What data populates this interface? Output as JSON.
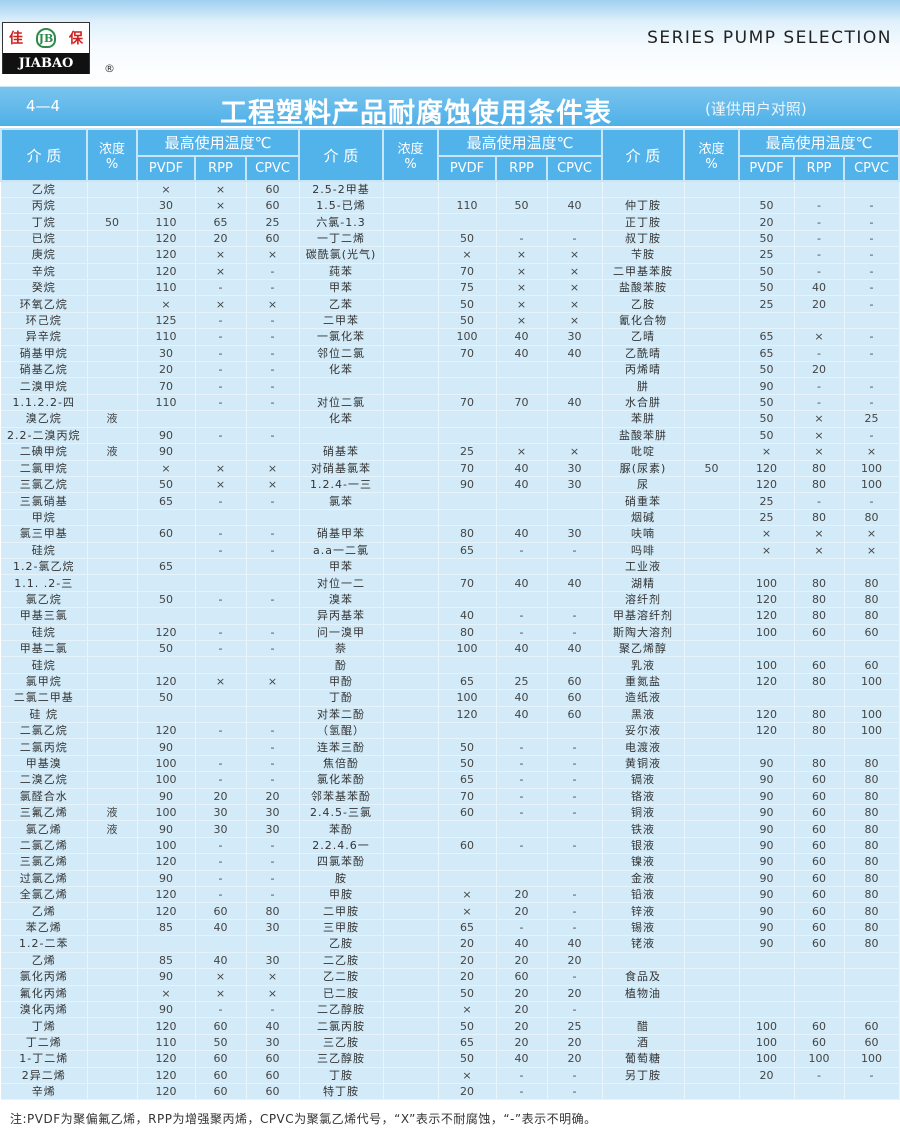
{
  "header": {
    "brand_cn_left": "佳",
    "brand_cn_right": "保",
    "brand_en": "JIABAO",
    "registered": "®",
    "series": "SERIES PUMP SELECTION"
  },
  "titlebar": {
    "section": "4—4",
    "title": "工程塑料产品耐腐蚀使用条件表",
    "subtitle": "(谨供用户对照)"
  },
  "columns": {
    "medium": "介 质",
    "concentration": "浓度",
    "percent": "%",
    "max_temp": "最高使用温度℃",
    "pvdf": "PVDF",
    "rpp": "RPP",
    "cpvc": "CPVC"
  },
  "groups": [
    {
      "rows": [
        [
          "乙烷",
          "",
          "×",
          "×",
          "60"
        ],
        [
          "丙烷",
          "",
          "30",
          "×",
          "60"
        ],
        [
          "丁烷",
          "50",
          "110",
          "65",
          "25"
        ],
        [
          "已烷",
          "",
          "120",
          "20",
          "60"
        ],
        [
          "庚烷",
          "",
          "120",
          "×",
          "×"
        ],
        [
          "辛烷",
          "",
          "120",
          "×",
          "-"
        ],
        [
          "癸烷",
          "",
          "110",
          "-",
          "-"
        ],
        [
          "环氧乙烷",
          "",
          "×",
          "×",
          "×"
        ],
        [
          "环己烷",
          "",
          "125",
          "-",
          "-"
        ],
        [
          "异辛烷",
          "",
          "110",
          "-",
          "-"
        ],
        [
          "硝基甲烷",
          "",
          "30",
          "-",
          "-"
        ],
        [
          "硝基乙烷",
          "",
          "20",
          "-",
          "-"
        ],
        [
          "二溴甲烷",
          "",
          "70",
          "-",
          "-"
        ],
        [
          "1.1.2.2-四",
          "",
          "110",
          "-",
          "-"
        ],
        [
          "溴乙烷",
          "液",
          "",
          "",
          ""
        ],
        [
          "2.2-二溴丙烷",
          "",
          "90",
          "-",
          "-"
        ],
        [
          "二碘甲烷",
          "液",
          "90",
          "",
          ""
        ],
        [
          "二氯甲烷",
          "",
          "×",
          "×",
          "×"
        ],
        [
          "三氯乙烷",
          "",
          "50",
          "×",
          "×"
        ],
        [
          "三氯硝基",
          "",
          "65",
          "-",
          "-"
        ],
        [
          "甲烷",
          "",
          "",
          "",
          ""
        ],
        [
          "氯三甲基",
          "",
          "60",
          "-",
          "-"
        ],
        [
          "硅烷",
          "",
          "",
          "-",
          "-"
        ],
        [
          "1.2-氯乙烷",
          "",
          "65",
          "",
          ""
        ],
        [
          "1.1. .2-三",
          "",
          "",
          "",
          ""
        ],
        [
          "氯乙烷",
          "",
          "50",
          "-",
          "-"
        ],
        [
          "甲基三氯",
          "",
          "",
          "",
          ""
        ],
        [
          "硅烷",
          "",
          "120",
          "-",
          "-"
        ],
        [
          "甲基二氯",
          "",
          "50",
          "-",
          "-"
        ],
        [
          "硅烷",
          "",
          "",
          "",
          ""
        ],
        [
          "氯甲烷",
          "",
          "120",
          "×",
          "×"
        ],
        [
          "二氯二甲基",
          "",
          "50",
          "",
          ""
        ],
        [
          "硅 烷",
          "",
          "",
          "",
          ""
        ],
        [
          "二氯乙烷",
          "",
          "120",
          "-",
          "-"
        ],
        [
          "二氯丙烷",
          "",
          "90",
          "",
          "-"
        ],
        [
          "甲基溴",
          "",
          "100",
          "-",
          "-"
        ],
        [
          "二溴乙烷",
          "",
          "100",
          "-",
          "-"
        ],
        [
          "氯醛合水",
          "",
          "90",
          "20",
          "20"
        ],
        [
          "三氟乙烯",
          "液",
          "100",
          "30",
          "30"
        ],
        [
          "氯乙烯",
          "液",
          "90",
          "30",
          "30"
        ],
        [
          "二氯乙烯",
          "",
          "100",
          "-",
          "-"
        ],
        [
          "三氯乙烯",
          "",
          "120",
          "-",
          "-"
        ],
        [
          "过氯乙烯",
          "",
          "90",
          "-",
          "-"
        ],
        [
          "全氯乙烯",
          "",
          "120",
          "-",
          "-"
        ],
        [
          "乙烯",
          "",
          "120",
          "60",
          "80"
        ],
        [
          "苯乙烯",
          "",
          "85",
          "40",
          "30"
        ],
        [
          "1.2-二苯",
          "",
          "",
          "",
          ""
        ],
        [
          "乙烯",
          "",
          "85",
          "40",
          "30"
        ],
        [
          "氯化丙烯",
          "",
          "90",
          "×",
          "×"
        ],
        [
          "氟化丙烯",
          "",
          "×",
          "×",
          "×"
        ],
        [
          "溴化丙烯",
          "",
          "90",
          "-",
          "-"
        ],
        [
          "丁烯",
          "",
          "120",
          "60",
          "40"
        ],
        [
          "丁二烯",
          "",
          "110",
          "50",
          "30"
        ],
        [
          "1-丁二烯",
          "",
          "120",
          "60",
          "60"
        ],
        [
          "2异二烯",
          "",
          "120",
          "60",
          "60"
        ],
        [
          "辛烯",
          "",
          "120",
          "60",
          "60"
        ]
      ]
    },
    {
      "rows": [
        [
          "2.5-2甲基",
          "",
          "",
          "",
          ""
        ],
        [
          "1.5-已烯",
          "",
          "110",
          "50",
          "40"
        ],
        [
          "六氯-1.3",
          "",
          "",
          "",
          ""
        ],
        [
          "一丁二烯",
          "",
          "50",
          "-",
          "-"
        ],
        [
          "碳酰氯(光气)",
          "",
          "×",
          "×",
          "×"
        ],
        [
          "莼苯",
          "",
          "70",
          "×",
          "×"
        ],
        [
          "甲苯",
          "",
          "75",
          "×",
          "×"
        ],
        [
          "乙苯",
          "",
          "50",
          "×",
          "×"
        ],
        [
          "二甲苯",
          "",
          "50",
          "×",
          "×"
        ],
        [
          "一氯化苯",
          "",
          "100",
          "40",
          "30"
        ],
        [
          "邻位二氯",
          "",
          "70",
          "40",
          "40"
        ],
        [
          "化苯",
          "",
          "",
          "",
          ""
        ],
        [
          "",
          "",
          "",
          "",
          ""
        ],
        [
          "对位二氯",
          "",
          "70",
          "70",
          "40"
        ],
        [
          "化苯",
          "",
          "",
          "",
          ""
        ],
        [
          "",
          "",
          "",
          "",
          ""
        ],
        [
          "硝基苯",
          "",
          "25",
          "×",
          "×"
        ],
        [
          "对硝基氯苯",
          "",
          "70",
          "40",
          "30"
        ],
        [
          "1.2.4-一三",
          "",
          "90",
          "40",
          "30"
        ],
        [
          "氯苯",
          "",
          "",
          "",
          ""
        ],
        [
          "",
          "",
          "",
          "",
          ""
        ],
        [
          "硝基甲苯",
          "",
          "80",
          "40",
          "30"
        ],
        [
          "a.a一二氯",
          "",
          "65",
          "-",
          "-"
        ],
        [
          "甲苯",
          "",
          "",
          "",
          ""
        ],
        [
          "对位一二",
          "",
          "70",
          "40",
          "40"
        ],
        [
          "溴苯",
          "",
          "",
          "",
          ""
        ],
        [
          "异丙基苯",
          "",
          "40",
          "-",
          "-"
        ],
        [
          "问一溴甲",
          "",
          "80",
          "-",
          "-"
        ],
        [
          "萘",
          "",
          "100",
          "40",
          "40"
        ],
        [
          "酚",
          "",
          "",
          "",
          ""
        ],
        [
          "甲酚",
          "",
          "65",
          "25",
          "60"
        ],
        [
          "丁酚",
          "",
          "100",
          "40",
          "60"
        ],
        [
          "对苯二酚",
          "",
          "120",
          "40",
          "60"
        ],
        [
          "（氢醌）",
          "",
          "",
          "",
          ""
        ],
        [
          "连苯三酚",
          "",
          "50",
          "-",
          "-"
        ],
        [
          "焦倍酚",
          "",
          "50",
          "-",
          "-"
        ],
        [
          "氯化苯酚",
          "",
          "65",
          "-",
          "-"
        ],
        [
          "邻苯基苯酚",
          "",
          "70",
          "-",
          "-"
        ],
        [
          "2.4.5-三氯",
          "",
          "60",
          "-",
          "-"
        ],
        [
          "苯酚",
          "",
          "",
          "",
          ""
        ],
        [
          "2.2.4.6一",
          "",
          "60",
          "-",
          "-"
        ],
        [
          "四氯苯酚",
          "",
          "",
          "",
          ""
        ],
        [
          "胺",
          "",
          "",
          "",
          ""
        ],
        [
          "甲胺",
          "",
          "×",
          "20",
          "-"
        ],
        [
          "二甲胺",
          "",
          "×",
          "20",
          "-"
        ],
        [
          "三甲胺",
          "",
          "65",
          "-",
          "-"
        ],
        [
          "乙胺",
          "",
          "20",
          "40",
          "40"
        ],
        [
          "二乙胺",
          "",
          "20",
          "20",
          "20"
        ],
        [
          "乙二胺",
          "",
          "20",
          "60",
          "-"
        ],
        [
          "已二胺",
          "",
          "50",
          "20",
          "20"
        ],
        [
          "二乙醇胺",
          "",
          "×",
          "20",
          "-"
        ],
        [
          "二氯丙胺",
          "",
          "50",
          "20",
          "25"
        ],
        [
          "三乙胺",
          "",
          "65",
          "20",
          "20"
        ],
        [
          "三乙醇胺",
          "",
          "50",
          "40",
          "20"
        ],
        [
          "丁胺",
          "",
          "×",
          "-",
          "-"
        ],
        [
          "特丁胺",
          "",
          "20",
          "-",
          "-"
        ]
      ]
    },
    {
      "rows": [
        [
          "",
          "",
          "",
          "",
          ""
        ],
        [
          "仲丁胺",
          "",
          "50",
          "-",
          "-"
        ],
        [
          "正丁胺",
          "",
          "20",
          "-",
          "-"
        ],
        [
          "叔丁胺",
          "",
          "50",
          "-",
          "-"
        ],
        [
          "苄胺",
          "",
          "25",
          "-",
          "-"
        ],
        [
          "二甲基苯胺",
          "",
          "50",
          "-",
          "-"
        ],
        [
          "盐酸苯胺",
          "",
          "50",
          "40",
          "-"
        ],
        [
          "乙胺",
          "",
          "25",
          "20",
          "-"
        ],
        [
          "氰化合物",
          "",
          "",
          "",
          ""
        ],
        [
          "乙晴",
          "",
          "65",
          "×",
          "-"
        ],
        [
          "乙酰晴",
          "",
          "65",
          "-",
          "-"
        ],
        [
          "丙烯晴",
          "",
          "50",
          "20",
          ""
        ],
        [
          "肼",
          "",
          "90",
          "-",
          "-"
        ],
        [
          "水合肼",
          "",
          "50",
          "-",
          "-"
        ],
        [
          "苯肼",
          "",
          "50",
          "×",
          "25"
        ],
        [
          "盐酸苯肼",
          "",
          "50",
          "×",
          "-"
        ],
        [
          "吡啶",
          "",
          "×",
          "×",
          "×"
        ],
        [
          "脲(尿素)",
          "50",
          "120",
          "80",
          "100"
        ],
        [
          "尿",
          "",
          "120",
          "80",
          "100"
        ],
        [
          "硝重苯",
          "",
          "25",
          "-",
          "-"
        ],
        [
          "烟碱",
          "",
          "25",
          "80",
          "80"
        ],
        [
          "呋喃",
          "",
          "×",
          "×",
          "×"
        ],
        [
          "吗啡",
          "",
          "×",
          "×",
          "×"
        ],
        [
          "工业液",
          "",
          "",
          "",
          ""
        ],
        [
          "湖精",
          "",
          "100",
          "80",
          "80"
        ],
        [
          "溶纤剂",
          "",
          "120",
          "80",
          "80"
        ],
        [
          "甲基溶纤剂",
          "",
          "120",
          "80",
          "80"
        ],
        [
          "斯陶大溶剂",
          "",
          "100",
          "60",
          "60"
        ],
        [
          "聚乙烯醇",
          "",
          "",
          "",
          ""
        ],
        [
          "乳液",
          "",
          "100",
          "60",
          "60"
        ],
        [
          "重氮盐",
          "",
          "120",
          "80",
          "100"
        ],
        [
          "造纸液",
          "",
          "",
          "",
          ""
        ],
        [
          "黑液",
          "",
          "120",
          "80",
          "100"
        ],
        [
          "妥尔液",
          "",
          "120",
          "80",
          "100"
        ],
        [
          "电渡液",
          "",
          "",
          "",
          ""
        ],
        [
          "黄铜液",
          "",
          "90",
          "80",
          "80"
        ],
        [
          "镉液",
          "",
          "90",
          "60",
          "80"
        ],
        [
          "铬液",
          "",
          "90",
          "60",
          "80"
        ],
        [
          "铜液",
          "",
          "90",
          "60",
          "80"
        ],
        [
          "铁液",
          "",
          "90",
          "60",
          "80"
        ],
        [
          "银液",
          "",
          "90",
          "60",
          "80"
        ],
        [
          "镍液",
          "",
          "90",
          "60",
          "80"
        ],
        [
          "金液",
          "",
          "90",
          "60",
          "80"
        ],
        [
          "铅液",
          "",
          "90",
          "60",
          "80"
        ],
        [
          "锌液",
          "",
          "90",
          "60",
          "80"
        ],
        [
          "锡液",
          "",
          "90",
          "60",
          "80"
        ],
        [
          "铑液",
          "",
          "90",
          "60",
          "80"
        ],
        [
          "",
          "",
          "",
          "",
          ""
        ],
        [
          "食品及",
          "",
          "",
          "",
          ""
        ],
        [
          "植物油",
          "",
          "",
          "",
          ""
        ],
        [
          "",
          "",
          "",
          "",
          ""
        ],
        [
          "醋",
          "",
          "100",
          "60",
          "60"
        ],
        [
          "酒",
          "",
          "100",
          "60",
          "60"
        ],
        [
          "葡萄糖",
          "",
          "100",
          "100",
          "100"
        ],
        [
          "另丁胺",
          "",
          "20",
          "-",
          "-"
        ],
        [
          "",
          "",
          "",
          "",
          ""
        ]
      ]
    }
  ],
  "footnote": "注:PVDF为聚偏氟乙烯，RPP为增强聚丙烯，CPVC为聚氯乙烯代号，“X”表示不耐腐蚀，“-”表示不明确。",
  "colors": {
    "header_blue": "#52b2ea",
    "cell_bg": "#d3ebf8",
    "logo_red": "#d12020"
  }
}
